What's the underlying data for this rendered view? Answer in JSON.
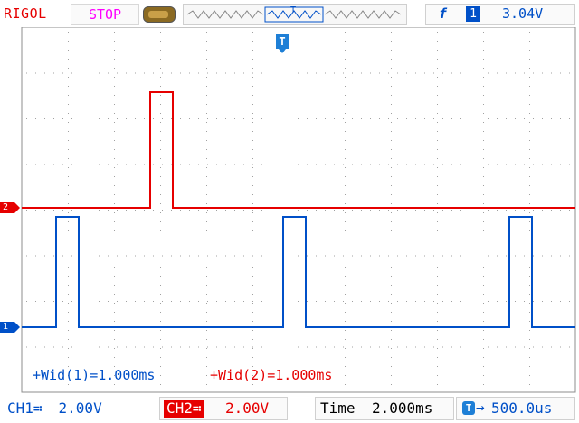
{
  "header": {
    "brand": "RIGOL",
    "run_status": "STOP",
    "trigger": {
      "edge_symbol": "f",
      "source_channel": "1",
      "level": "3.04V"
    }
  },
  "trigger_marker_label": "T",
  "channel_markers": {
    "ch2": "2",
    "ch1": "1"
  },
  "measurements": {
    "ch1": "+Wid(1)=1.000ms",
    "ch2": "+Wid(2)=1.000ms"
  },
  "footer": {
    "ch1_label": "CH1≕",
    "ch1_scale": "2.00V",
    "ch2_label": "CH2≕",
    "ch2_scale": "2.00V",
    "time_label": "Time",
    "time_scale": "2.000ms",
    "offset_icon": "T",
    "offset_arrow": "→",
    "offset_value": "500.0us"
  },
  "colors": {
    "ch1": "#0050c8",
    "ch2": "#e60000",
    "grid": "#a0a0a0",
    "status": "#ff00ff"
  },
  "icons": [
    "battery-icon",
    "memory-depth-icon",
    "trigger-edge-icon",
    "trigger-position-icon"
  ]
}
